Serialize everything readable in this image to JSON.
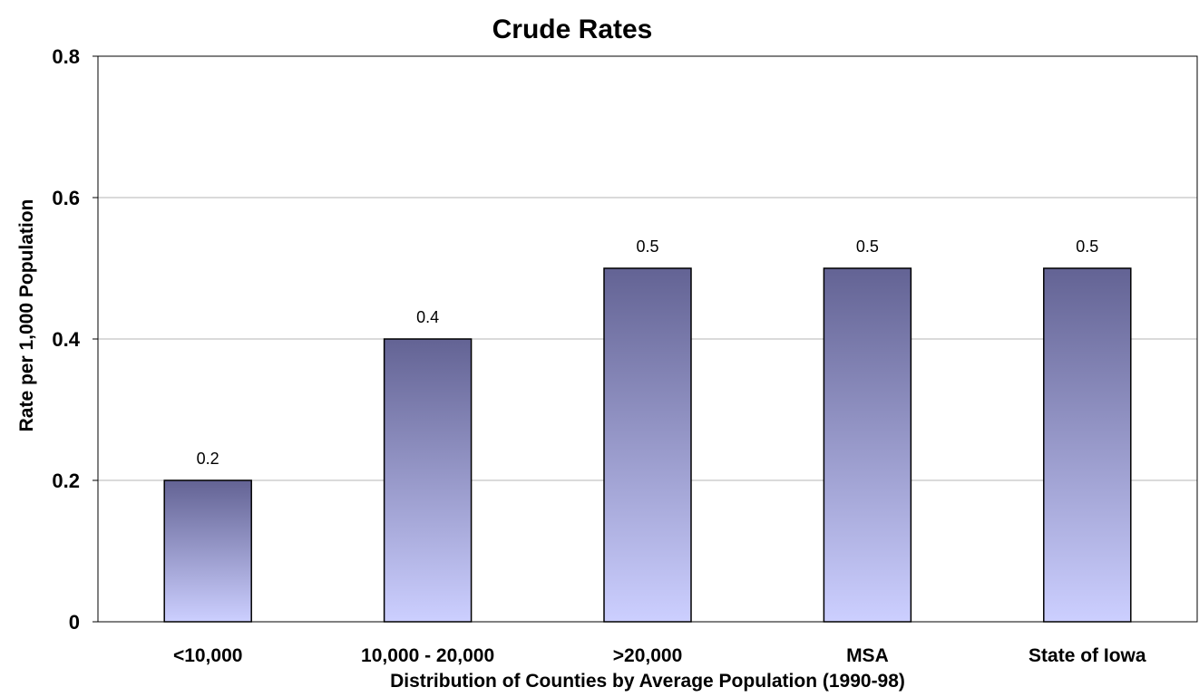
{
  "chart_data": {
    "type": "bar",
    "title": "Crude Rates",
    "xlabel": "Distribution of Counties by Average Population (1990-98)",
    "ylabel": "Rate per 1,000 Population",
    "categories": [
      "<10,000",
      "10,000 - 20,000",
      ">20,000",
      "MSA",
      "State of Iowa"
    ],
    "values": [
      0.2,
      0.4,
      0.5,
      0.5,
      0.5
    ],
    "data_labels": [
      "0.2",
      "0.4",
      "0.5",
      "0.5",
      "0.5"
    ],
    "ylim": [
      0,
      0.8
    ],
    "yticks": [
      0,
      0.2,
      0.4,
      0.6,
      0.8
    ],
    "ytick_labels": [
      "0",
      "0.2",
      "0.4",
      "0.6",
      "0.8"
    ],
    "grid": true,
    "legend": "none",
    "colors": {
      "bar_top": "#636394",
      "bar_bottom": "#cccfff",
      "bar_border": "#000000",
      "grid": "#b4b4b4"
    }
  }
}
